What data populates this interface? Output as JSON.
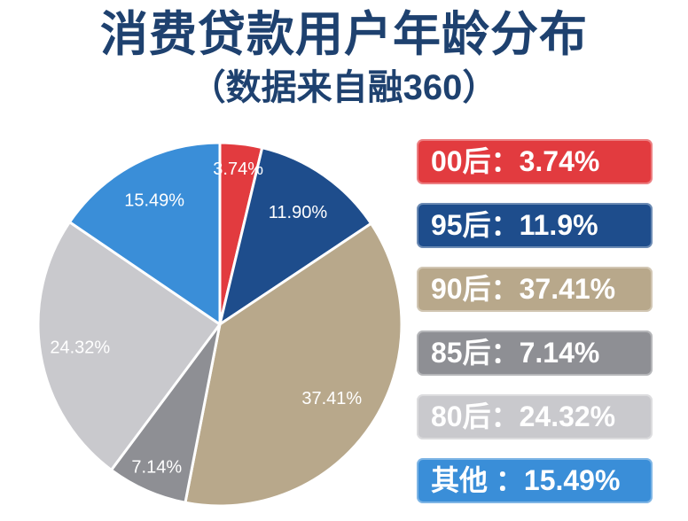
{
  "chart_data": {
    "type": "pie",
    "title": "消费贷款用户年龄分布",
    "subtitle": "（数据来自融360）",
    "categories": [
      "00后",
      "95后",
      "90后",
      "85后",
      "80后",
      "其他"
    ],
    "values": [
      3.74,
      11.9,
      37.41,
      7.14,
      24.32,
      15.49
    ],
    "data_labels": [
      "3.74%",
      "11.90%",
      "37.41%",
      "7.14%",
      "24.32%",
      "15.49%"
    ],
    "colors": [
      "#e23b3f",
      "#1e4d8c",
      "#b8a88b",
      "#8e8f94",
      "#c9c9cd",
      "#3a8ed8"
    ],
    "legend_placement": "right",
    "legend": [
      "00后：3.74%",
      "95后：11.9%",
      "90后：37.41%",
      "85后：7.14%",
      "80后：24.32%",
      "其他 ：15.49%"
    ]
  },
  "theme": {
    "title_color": "#1e416f",
    "background": "#ffffff",
    "label_color": "#ffffff"
  }
}
